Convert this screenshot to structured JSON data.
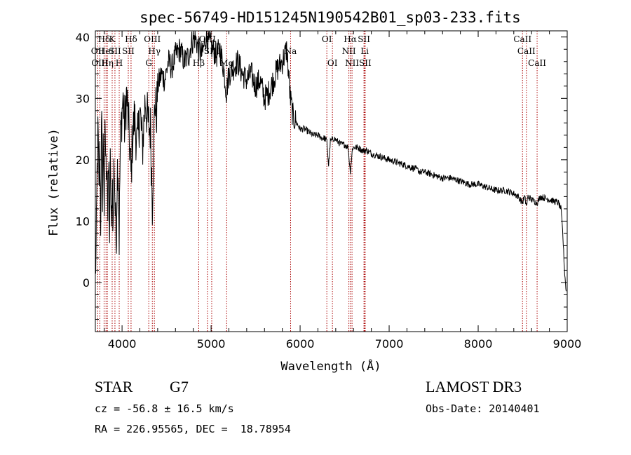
{
  "chart_data": {
    "type": "line",
    "title": "spec-56749-HD151245N190542B01_sp03-233.fits",
    "xlabel": "Wavelength (Å)",
    "ylabel": "Flux (relative)",
    "xlim": [
      3700,
      9000
    ],
    "ylim": [
      -8,
      41
    ],
    "xticks": [
      4000,
      5000,
      6000,
      7000,
      8000,
      9000
    ],
    "yticks": [
      0,
      10,
      20,
      30,
      40
    ],
    "series": [
      {
        "name": "flux",
        "anchors": [
          [
            3700,
            2
          ],
          [
            3710,
            5
          ],
          [
            3720,
            18
          ],
          [
            3730,
            25
          ],
          [
            3740,
            14
          ],
          [
            3750,
            22
          ],
          [
            3760,
            10
          ],
          [
            3770,
            27
          ],
          [
            3780,
            15
          ],
          [
            3790,
            24
          ],
          [
            3800,
            12
          ],
          [
            3810,
            26
          ],
          [
            3820,
            18
          ],
          [
            3830,
            22
          ],
          [
            3840,
            10
          ],
          [
            3850,
            20
          ],
          [
            3860,
            7
          ],
          [
            3870,
            22
          ],
          [
            3880,
            6
          ],
          [
            3890,
            18
          ],
          [
            3900,
            8
          ],
          [
            3910,
            21
          ],
          [
            3920,
            14
          ],
          [
            3933,
            6
          ],
          [
            3945,
            18
          ],
          [
            3955,
            20
          ],
          [
            3968,
            7
          ],
          [
            3980,
            22
          ],
          [
            3995,
            27
          ],
          [
            4010,
            30
          ],
          [
            4030,
            25
          ],
          [
            4050,
            31
          ],
          [
            4080,
            24
          ],
          [
            4101,
            17
          ],
          [
            4115,
            23
          ],
          [
            4140,
            27
          ],
          [
            4170,
            22
          ],
          [
            4200,
            28
          ],
          [
            4230,
            22
          ],
          [
            4260,
            30
          ],
          [
            4290,
            26
          ],
          [
            4320,
            25
          ],
          [
            4340,
            13
          ],
          [
            4355,
            23
          ],
          [
            4370,
            30
          ],
          [
            4385,
            27
          ],
          [
            4400,
            32
          ],
          [
            4440,
            34
          ],
          [
            4480,
            33
          ],
          [
            4520,
            36
          ],
          [
            4560,
            35
          ],
          [
            4600,
            37
          ],
          [
            4650,
            38
          ],
          [
            4700,
            36
          ],
          [
            4750,
            37
          ],
          [
            4780,
            39
          ],
          [
            4820,
            40
          ],
          [
            4861,
            38
          ],
          [
            4900,
            37
          ],
          [
            4940,
            40
          ],
          [
            4980,
            39
          ],
          [
            5020,
            38
          ],
          [
            5060,
            37
          ],
          [
            5100,
            38
          ],
          [
            5140,
            35
          ],
          [
            5172,
            31
          ],
          [
            5200,
            34
          ],
          [
            5250,
            35
          ],
          [
            5300,
            36
          ],
          [
            5350,
            34
          ],
          [
            5400,
            33
          ],
          [
            5450,
            34
          ],
          [
            5500,
            32
          ],
          [
            5550,
            33
          ],
          [
            5600,
            30
          ],
          [
            5650,
            31
          ],
          [
            5700,
            33
          ],
          [
            5750,
            35
          ],
          [
            5800,
            36
          ],
          [
            5850,
            38
          ],
          [
            5890,
            30
          ],
          [
            5920,
            27
          ],
          [
            5960,
            26
          ],
          [
            6000,
            25
          ],
          [
            6050,
            25
          ],
          [
            6100,
            24.5
          ],
          [
            6150,
            24
          ],
          [
            6200,
            24
          ],
          [
            6250,
            23.5
          ],
          [
            6280,
            23.5
          ],
          [
            6300,
            23
          ],
          [
            6320,
            19
          ],
          [
            6340,
            23
          ],
          [
            6380,
            23.5
          ],
          [
            6420,
            23
          ],
          [
            6460,
            22.5
          ],
          [
            6500,
            22.5
          ],
          [
            6540,
            22
          ],
          [
            6563,
            18
          ],
          [
            6590,
            22
          ],
          [
            6650,
            22
          ],
          [
            6700,
            21.5
          ],
          [
            6750,
            21.5
          ],
          [
            6800,
            21
          ],
          [
            6900,
            20.5
          ],
          [
            7000,
            20
          ],
          [
            7100,
            19.5
          ],
          [
            7200,
            19
          ],
          [
            7300,
            18.5
          ],
          [
            7350,
            18
          ],
          [
            7400,
            18
          ],
          [
            7500,
            17.5
          ],
          [
            7600,
            17
          ],
          [
            7700,
            17
          ],
          [
            7800,
            16.5
          ],
          [
            7900,
            16
          ],
          [
            8000,
            16
          ],
          [
            8100,
            15.5
          ],
          [
            8200,
            15
          ],
          [
            8300,
            15
          ],
          [
            8400,
            14.5
          ],
          [
            8450,
            14
          ],
          [
            8498,
            13
          ],
          [
            8520,
            14
          ],
          [
            8542,
            12.5
          ],
          [
            8560,
            14
          ],
          [
            8600,
            13.5
          ],
          [
            8662,
            13
          ],
          [
            8700,
            14
          ],
          [
            8800,
            13.5
          ],
          [
            8900,
            13
          ],
          [
            8930,
            12
          ],
          [
            8950,
            8
          ],
          [
            8970,
            2
          ],
          [
            8990,
            -2
          ]
        ]
      }
    ],
    "lines": [
      {
        "wave": 3727,
        "label": "OII",
        "row": 1
      },
      {
        "wave": 3750,
        "label": "OIII",
        "row": 2
      },
      {
        "wave": 3798,
        "label": "Hδ",
        "row": 0
      },
      {
        "wave": 3820,
        "label": "HeI",
        "row": 1
      },
      {
        "wave": 3835,
        "label": "Hη",
        "row": 2
      },
      {
        "wave": 3889,
        "label": "K",
        "row": 0
      },
      {
        "wave": 3920,
        "label": "SII",
        "row": 1
      },
      {
        "wave": 3968,
        "label": "H",
        "row": 2
      },
      {
        "wave": 4101,
        "label": "Hδ",
        "row": 0
      },
      {
        "wave": 4070,
        "label": "SII",
        "row": 1
      },
      {
        "wave": 4300,
        "label": "G",
        "row": 2
      },
      {
        "wave": 4340,
        "label": "OIII",
        "row": 0
      },
      {
        "wave": 4363,
        "label": "Hγ",
        "row": 1
      },
      {
        "wave": 4861,
        "label": "Hβ",
        "row": 2
      },
      {
        "wave": 4959,
        "label": "OIII",
        "row": 0
      },
      {
        "wave": 5007,
        "label": "SIII",
        "row": 1
      },
      {
        "wave": 5175,
        "label": "Mg",
        "row": 2
      },
      {
        "wave": 5893,
        "label": "Na",
        "row": 1
      },
      {
        "wave": 6300,
        "label": "OI",
        "row": 0
      },
      {
        "wave": 6363,
        "label": "OI",
        "row": 2
      },
      {
        "wave": 6548,
        "label": "NII",
        "row": 1
      },
      {
        "wave": 6563,
        "label": "Hα",
        "row": 0
      },
      {
        "wave": 6583,
        "label": "NII",
        "row": 2
      },
      {
        "wave": 6717,
        "label": "SII",
        "row": 0
      },
      {
        "wave": 6725,
        "label": "Li",
        "row": 1
      },
      {
        "wave": 6731,
        "label": "SII",
        "row": 2
      },
      {
        "wave": 8498,
        "label": "CaII",
        "row": 0
      },
      {
        "wave": 8542,
        "label": "CaII",
        "row": 1
      },
      {
        "wave": 8662,
        "label": "CaII",
        "row": 2
      }
    ]
  },
  "info": {
    "object_class": "STAR",
    "subclass": "G7",
    "survey": "LAMOST DR3",
    "redshift_text": "cz = -56.8 ± 16.5 km/s",
    "obs_date": "Obs-Date: 20140401",
    "coords": "RA = 226.95565, DEC =  18.78954"
  },
  "colors": {
    "line_marker": "#aa0000",
    "spectrum": "#000000"
  }
}
